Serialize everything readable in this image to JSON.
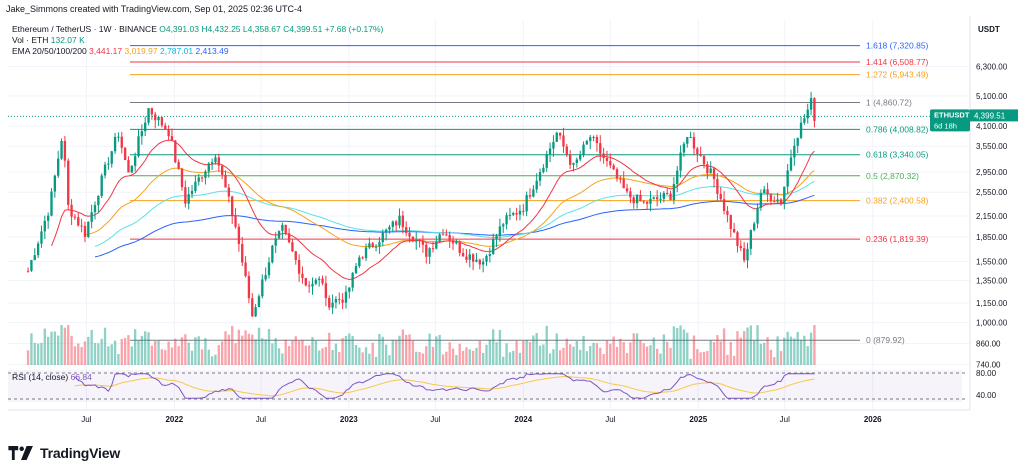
{
  "header": {
    "credit": "Jake_Simmons created with TradingView.com, Sep 01, 2025 02:36 UTC-4"
  },
  "legend": {
    "pair": "Ethereum / TetherUS · 1W · BINANCE",
    "open": "O4,391.03",
    "high": "H4,432.25",
    "low": "L4,358.67",
    "close": "C4,399.51",
    "change": "+7.68 (+0.17%)",
    "vol_label": "Vol · ETH",
    "vol_value": "132.07 K",
    "ema_label": "EMA 20/50/100/200",
    "ema20": "3,441.17",
    "ema50": "3,019.97",
    "ema100": "2,787.01",
    "ema200": "2,413.49"
  },
  "rsi": {
    "label": "RSI (14, close)",
    "value": "66.84",
    "color": "#7e57c2"
  },
  "footer": {
    "brand": "TradingView"
  },
  "colors": {
    "up": "#089981",
    "down": "#f23645",
    "ema20": "#f23645",
    "ema50": "#f7a21b",
    "ema100": "#5ce1e6",
    "ema200": "#2962ff"
  },
  "chart_data": {
    "type": "candlestick",
    "symbol": "ETHUSDT",
    "price_tag": "4,399.51",
    "countdown": "6d 18h",
    "price_axis_title": "USDT",
    "scale": "log",
    "ylim": [
      700,
      8800
    ],
    "y_ticks": [
      "6,300.00",
      "5,100.00",
      "4,100.00",
      "3,550.00",
      "2,950.00",
      "2,550.00",
      "2,150.00",
      "1,850.00",
      "1,550.00",
      "1,350.00",
      "1,150.00",
      "1,000.00",
      "860.00",
      "740.00"
    ],
    "x_ticks": [
      "Jul",
      "2022",
      "Jul",
      "2023",
      "Jul",
      "2024",
      "Jul",
      "2025",
      "Jul",
      "2026"
    ],
    "rsi_ticks": [
      "80.00",
      "40.00"
    ],
    "fib_levels": [
      {
        "label": "1.618 (7,320.85)",
        "value": 7320.85,
        "color": "#2962ff"
      },
      {
        "label": "1.414 (6,508.77)",
        "value": 6508.77,
        "color": "#f23645"
      },
      {
        "label": "1.272 (5,943.49)",
        "value": 5943.49,
        "color": "#f7a21b"
      },
      {
        "label": "1 (4,860.72)",
        "value": 4860.72,
        "color": "#787b86"
      },
      {
        "label": "0.786 (4,008.82)",
        "value": 4008.82,
        "color": "#089981"
      },
      {
        "label": "0.618 (3,340.05)",
        "value": 3340.05,
        "color": "#089981"
      },
      {
        "label": "0.5 (2,870.32)",
        "value": 2870.32,
        "color": "#4caf50"
      },
      {
        "label": "0.382 (2,400.58)",
        "value": 2400.58,
        "color": "#f7a21b"
      },
      {
        "label": "0.236 (1,819.39)",
        "value": 1819.39,
        "color": "#f23645"
      },
      {
        "label": "0 (879.92)",
        "value": 879.92,
        "color": "#787b86"
      }
    ],
    "price_path": [
      [
        "2021-03-01",
        1450
      ],
      [
        "2021-04-15",
        2300
      ],
      [
        "2021-05-12",
        3900
      ],
      [
        "2021-05-24",
        2300
      ],
      [
        "2021-06-28",
        1900
      ],
      [
        "2021-08-15",
        3200
      ],
      [
        "2021-09-06",
        3900
      ],
      [
        "2021-09-27",
        2900
      ],
      [
        "2021-11-08",
        4650
      ],
      [
        "2021-12-20",
        3950
      ],
      [
        "2022-01-24",
        2400
      ],
      [
        "2022-03-28",
        3400
      ],
      [
        "2022-05-09",
        2000
      ],
      [
        "2022-06-13",
        1050
      ],
      [
        "2022-07-25",
        1700
      ],
      [
        "2022-08-15",
        1950
      ],
      [
        "2022-10-03",
        1320
      ],
      [
        "2022-11-07",
        1350
      ],
      [
        "2022-11-14",
        1150
      ],
      [
        "2022-12-26",
        1200
      ],
      [
        "2023-01-23",
        1600
      ],
      [
        "2023-04-17",
        2100
      ],
      [
        "2023-06-12",
        1650
      ],
      [
        "2023-07-17",
        1950
      ],
      [
        "2023-08-28",
        1650
      ],
      [
        "2023-10-09",
        1550
      ],
      [
        "2023-11-20",
        2050
      ],
      [
        "2024-01-01",
        2300
      ],
      [
        "2024-03-11",
        3900
      ],
      [
        "2024-04-15",
        3050
      ],
      [
        "2024-05-20",
        3800
      ],
      [
        "2024-08-05",
        2500
      ],
      [
        "2024-09-09",
        2350
      ],
      [
        "2024-11-04",
        2500
      ],
      [
        "2024-12-09",
        3900
      ],
      [
        "2025-01-06",
        3300
      ],
      [
        "2025-02-03",
        2800
      ],
      [
        "2025-03-10",
        2000
      ],
      [
        "2025-04-07",
        1550
      ],
      [
        "2025-05-12",
        2550
      ],
      [
        "2025-06-23",
        2400
      ],
      [
        "2025-07-21",
        3700
      ],
      [
        "2025-08-18",
        4600
      ],
      [
        "2025-08-25",
        4860
      ],
      [
        "2025-09-01",
        4399.51
      ]
    ],
    "x_range": [
      "2021-01-18",
      "2026-07-13"
    ]
  }
}
